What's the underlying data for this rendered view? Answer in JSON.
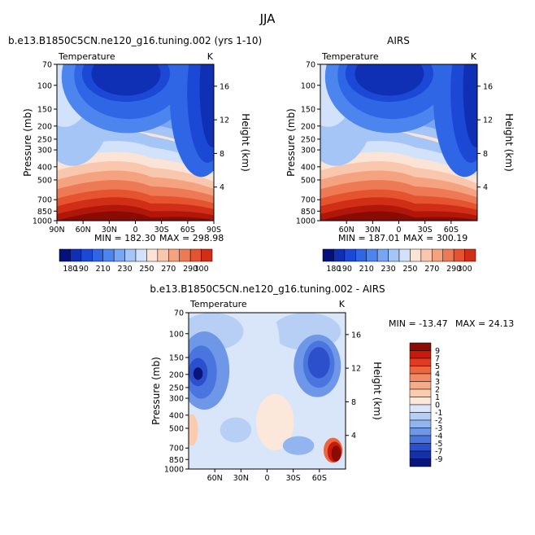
{
  "figure": {
    "title": "JJA"
  },
  "chart_data": [
    {
      "type": "heatmap",
      "subtitle": "b.e13.B1850C5CN.ne120_g16.tuning.002 (yrs 1-10)",
      "left_label": "Temperature",
      "units": "K",
      "ylabel": "Pressure (mb)",
      "y2label": "Height (km)",
      "x_ticks": [
        "90N",
        "60N",
        "30N",
        "0",
        "30S",
        "60S",
        "90S"
      ],
      "y_ticks": [
        "70",
        "100",
        "150",
        "200",
        "250",
        "300",
        "400",
        "500",
        "700",
        "850",
        "1000"
      ],
      "y2_ticks": [
        "16",
        "12",
        "8",
        "4"
      ],
      "ylim": [
        1000,
        70
      ],
      "min_label": "MIN = 182.30",
      "max_label": "MAX = 298.98",
      "min": 182.3,
      "max": 298.98,
      "colorbar_labels": [
        "180",
        "190",
        "210",
        "230",
        "250",
        "270",
        "290",
        "300"
      ],
      "levels": [
        180,
        190,
        200,
        210,
        220,
        230,
        240,
        250,
        260,
        270,
        280,
        290,
        300
      ]
    },
    {
      "type": "heatmap",
      "subtitle": "AIRS",
      "left_label": "Temperature",
      "units": "K",
      "ylabel": "Pressure (mb)",
      "y2label": "Height (km)",
      "x_ticks": [
        "60N",
        "30N",
        "0",
        "30S",
        "60S"
      ],
      "y_ticks": [
        "70",
        "100",
        "150",
        "200",
        "250",
        "300",
        "400",
        "500",
        "700",
        "850",
        "1000"
      ],
      "y2_ticks": [
        "16",
        "12",
        "8",
        "4"
      ],
      "ylim": [
        1000,
        70
      ],
      "min_label": "MIN = 187.01",
      "max_label": "MAX = 300.19",
      "min": 187.01,
      "max": 300.19,
      "colorbar_labels": [
        "180",
        "190",
        "210",
        "230",
        "250",
        "270",
        "290",
        "300"
      ],
      "levels": [
        180,
        190,
        200,
        210,
        220,
        230,
        240,
        250,
        260,
        270,
        280,
        290,
        300
      ]
    },
    {
      "type": "heatmap",
      "subtitle": "b.e13.B1850C5CN.ne120_g16.tuning.002 - AIRS",
      "left_label": "Temperature",
      "units": "K",
      "ylabel": "Pressure (mb)",
      "y2label": "Height (km)",
      "x_ticks": [
        "60N",
        "30N",
        "0",
        "30S",
        "60S"
      ],
      "y_ticks": [
        "70",
        "100",
        "150",
        "200",
        "250",
        "300",
        "400",
        "500",
        "700",
        "850",
        "1000"
      ],
      "y2_ticks": [
        "16",
        "12",
        "8",
        "4"
      ],
      "ylim": [
        1000,
        70
      ],
      "min_label": "MIN = -13.47",
      "max_label": "MAX = 24.13",
      "min": -13.47,
      "max": 24.13,
      "colorbar_labels": [
        "9",
        "7",
        "5",
        "4",
        "3",
        "2",
        "1",
        "0",
        "-1",
        "-2",
        "-3",
        "-4",
        "-5",
        "-7",
        "-9"
      ],
      "levels": [
        -9,
        -7,
        -5,
        -4,
        -3,
        -2,
        -1,
        0,
        1,
        2,
        3,
        4,
        5,
        7,
        9
      ]
    }
  ]
}
